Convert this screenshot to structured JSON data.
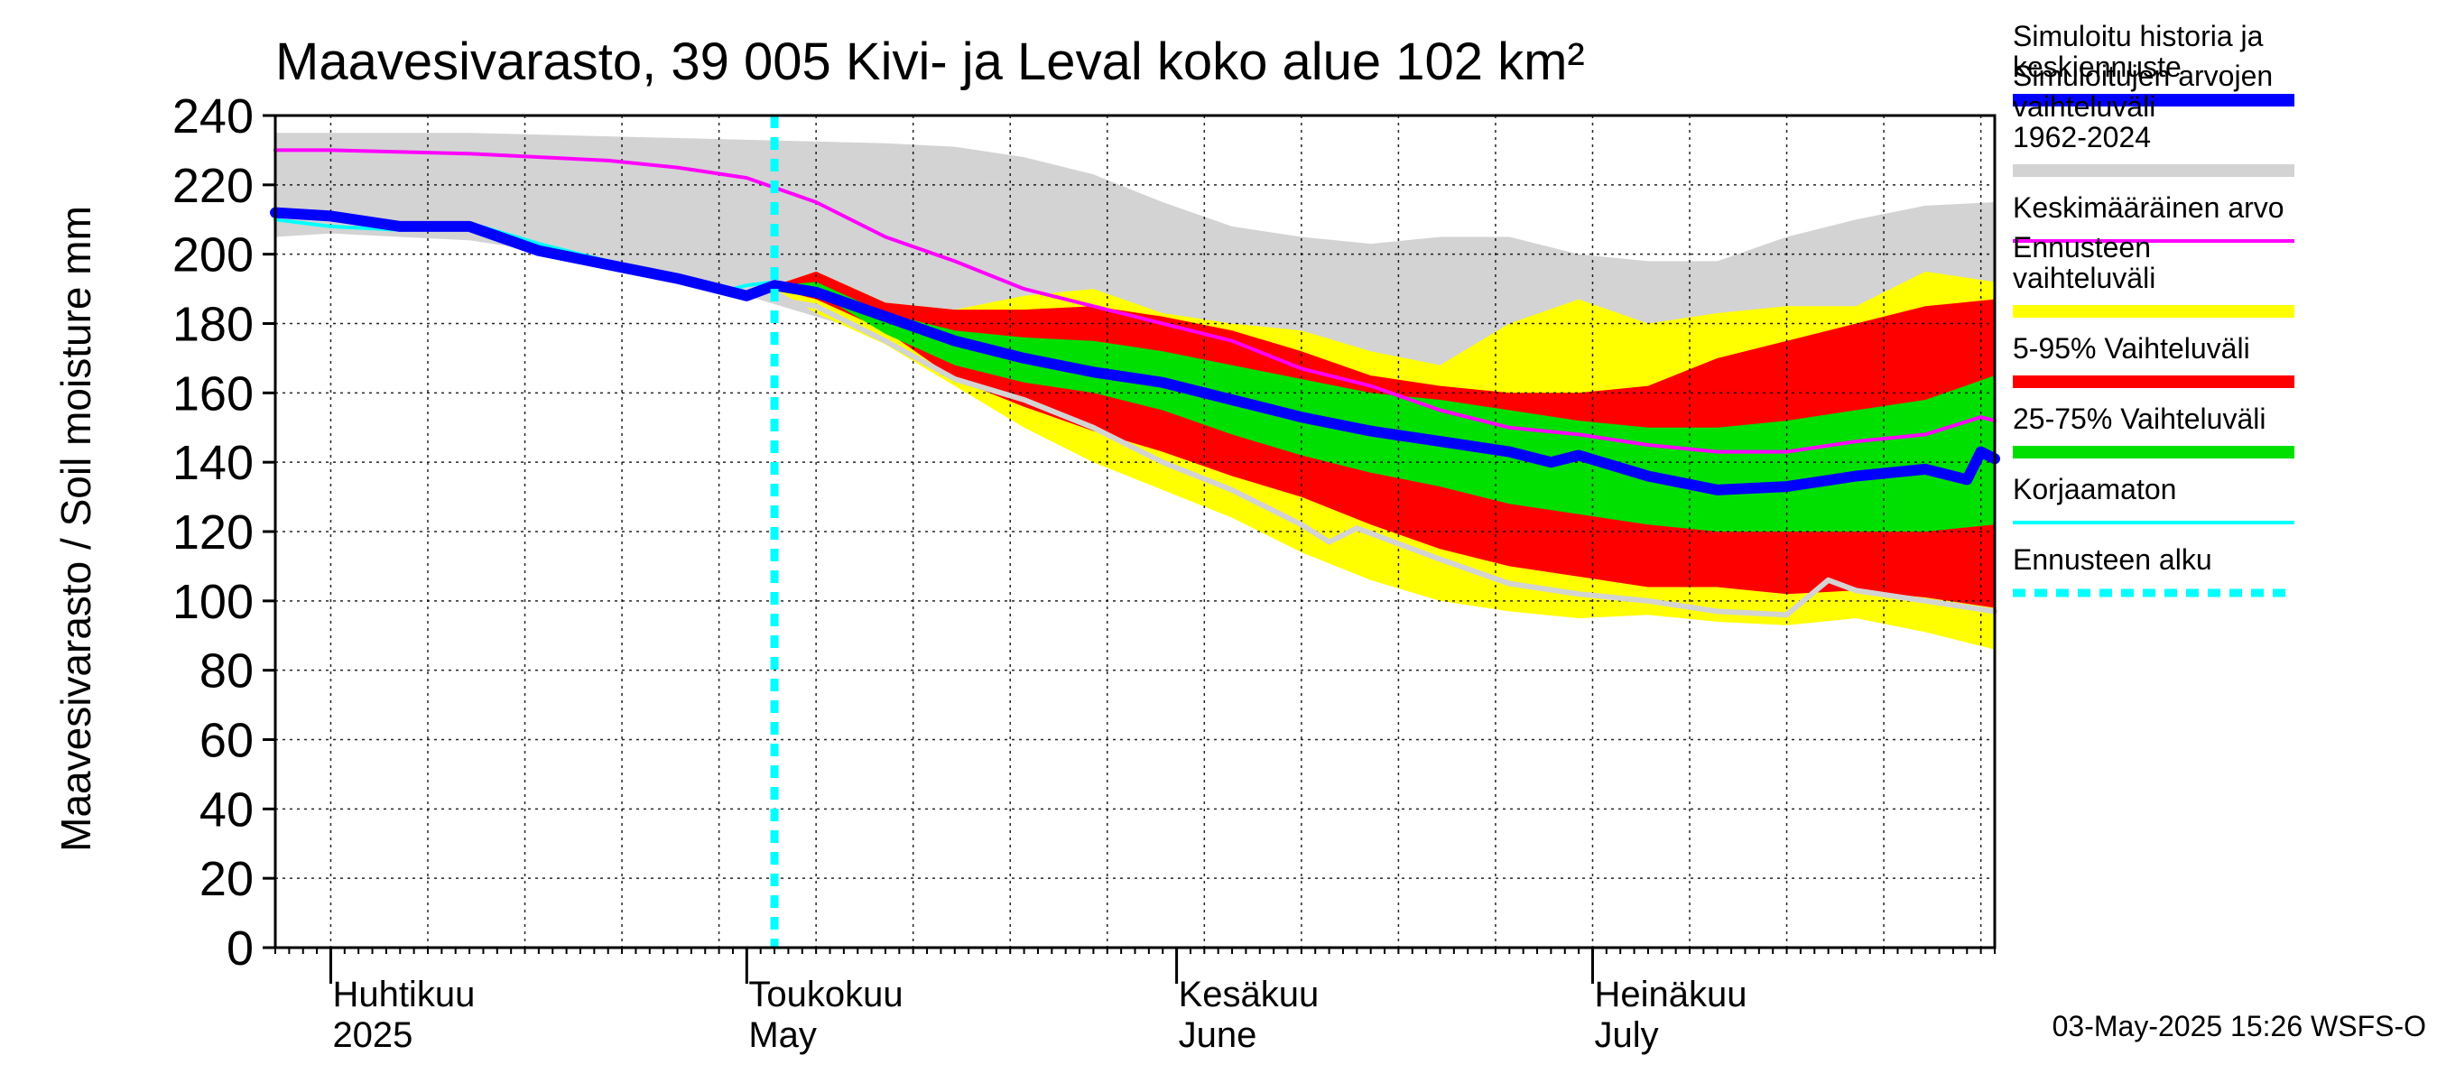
{
  "chart_data": {
    "type": "area",
    "title": "Maavesivarasto, 39 005 Kivi- ja Leval koko alue 102 km²",
    "ylabel": "Maavesivarasto / Soil moisture   mm",
    "xlabel": "",
    "ylim": [
      0,
      240
    ],
    "yticks": [
      0,
      20,
      40,
      60,
      80,
      100,
      120,
      140,
      160,
      180,
      200,
      220,
      240
    ],
    "x_domain": [
      -4,
      120
    ],
    "x_unit": "days since 2025-04-01",
    "month_starts": [
      0,
      30,
      61,
      91
    ],
    "month_labels": [
      {
        "day": 0,
        "fi": "Huhtikuu",
        "en": "2025"
      },
      {
        "day": 30,
        "fi": "Toukokuu",
        "en": "May"
      },
      {
        "day": 61,
        "fi": "Kesäkuu",
        "en": "June"
      },
      {
        "day": 91,
        "fi": "Heinäkuu",
        "en": "July"
      }
    ],
    "forecast_start_day": 32,
    "bands": [
      {
        "name": "Simuloitujen arvojen vaihteluväli 1962-2024",
        "color": "#d3d3d3",
        "x": [
          -4,
          0,
          10,
          20,
          30,
          40,
          45,
          50,
          55,
          60,
          65,
          70,
          75,
          80,
          85,
          90,
          95,
          100,
          105,
          110,
          115,
          120
        ],
        "upper": [
          235,
          235,
          235,
          234,
          233,
          232,
          231,
          228,
          223,
          215,
          208,
          205,
          203,
          205,
          205,
          200,
          198,
          198,
          205,
          210,
          214,
          215
        ],
        "lower": [
          205,
          206,
          204,
          198,
          188,
          176,
          168,
          157,
          145,
          135,
          125,
          118,
          114,
          112,
          110,
          108,
          104,
          103,
          100,
          98,
          96,
          95
        ]
      },
      {
        "name": "Ennusteen vaihteluväli",
        "color": "#ffff00",
        "x": [
          32,
          35,
          40,
          45,
          50,
          55,
          60,
          65,
          70,
          75,
          80,
          85,
          90,
          95,
          100,
          105,
          110,
          115,
          120
        ],
        "upper": [
          191,
          195,
          186,
          184,
          188,
          190,
          183,
          180,
          178,
          172,
          168,
          180,
          187,
          180,
          183,
          185,
          185,
          195,
          192
        ],
        "lower": [
          190,
          183,
          174,
          162,
          150,
          140,
          132,
          124,
          114,
          106,
          100,
          97,
          95,
          96,
          94,
          93,
          95,
          91,
          86
        ]
      },
      {
        "name": "5-95% Vaihteluväli",
        "color": "#ff0000",
        "x": [
          32,
          35,
          40,
          45,
          50,
          55,
          60,
          65,
          70,
          75,
          80,
          85,
          90,
          95,
          100,
          105,
          110,
          115,
          120
        ],
        "upper": [
          191,
          195,
          186,
          184,
          184,
          185,
          182,
          178,
          172,
          165,
          162,
          160,
          160,
          162,
          170,
          175,
          180,
          185,
          187
        ],
        "lower": [
          190,
          187,
          178,
          164,
          156,
          149,
          143,
          136,
          130,
          122,
          115,
          110,
          107,
          104,
          104,
          102,
          103,
          101,
          98
        ]
      },
      {
        "name": "25-75% Vaihteluväli",
        "color": "#00e000",
        "x": [
          32,
          35,
          40,
          45,
          50,
          55,
          60,
          65,
          70,
          75,
          80,
          85,
          90,
          95,
          100,
          105,
          110,
          115,
          120
        ],
        "upper": [
          191,
          192,
          183,
          178,
          176,
          175,
          172,
          168,
          164,
          160,
          158,
          155,
          152,
          150,
          150,
          152,
          155,
          158,
          165
        ],
        "lower": [
          190,
          189,
          177,
          168,
          163,
          160,
          155,
          148,
          142,
          137,
          133,
          128,
          125,
          122,
          120,
          120,
          120,
          120,
          122
        ]
      }
    ],
    "series": [
      {
        "name": "Keskimääräinen arvo",
        "color": "#ff00ff",
        "width": 4,
        "x": [
          -4,
          0,
          10,
          20,
          25,
          30,
          35,
          40,
          45,
          50,
          55,
          60,
          65,
          70,
          75,
          80,
          85,
          90,
          95,
          100,
          105,
          110,
          115,
          119,
          120
        ],
        "y": [
          230,
          230,
          229,
          227,
          225,
          222,
          215,
          205,
          198,
          190,
          185,
          180,
          175,
          167,
          162,
          155,
          150,
          148,
          145,
          143,
          143,
          146,
          148,
          153,
          152
        ]
      },
      {
        "name": "Korjaamaton",
        "color": "#00ffff",
        "width": 4,
        "x": [
          -4,
          0,
          5,
          10,
          15,
          20,
          25,
          28,
          30,
          32
        ],
        "y": [
          210,
          208,
          207,
          209,
          203,
          198,
          193,
          189,
          191,
          192
        ]
      },
      {
        "name": "Ennuste (harmaa)",
        "color": "#d3d3d3",
        "width": 6,
        "x": [
          32,
          35,
          40,
          45,
          50,
          55,
          60,
          65,
          70,
          72,
          74,
          76,
          80,
          85,
          90,
          95,
          100,
          105,
          108,
          110,
          115,
          120
        ],
        "y": [
          187,
          185,
          175,
          164,
          158,
          150,
          140,
          132,
          122,
          117,
          121,
          118,
          112,
          105,
          102,
          100,
          97,
          96,
          106,
          103,
          100,
          97
        ]
      },
      {
        "name": "Simuloitu historia ja keskiennuste",
        "color": "#0000ff",
        "width": 12,
        "x": [
          -4,
          0,
          5,
          10,
          15,
          20,
          25,
          28,
          30,
          32,
          35,
          40,
          45,
          50,
          55,
          60,
          65,
          70,
          75,
          80,
          85,
          88,
          90,
          95,
          100,
          105,
          110,
          115,
          118,
          119,
          120
        ],
        "y": [
          212,
          211,
          208,
          208,
          201,
          197,
          193,
          190,
          188,
          191,
          189,
          182,
          175,
          170,
          166,
          163,
          158,
          153,
          149,
          146,
          143,
          140,
          142,
          136,
          132,
          133,
          136,
          138,
          135,
          143,
          141
        ]
      }
    ],
    "legend": [
      {
        "label": "Simuloitu historia ja keskiennuste",
        "color": "#0000ff",
        "style": "thick"
      },
      {
        "label": "Simuloitujen arvojen vaihteluväli 1962-2024",
        "color": "#d3d3d3",
        "style": "thick"
      },
      {
        "label": "Keskimääräinen arvo",
        "color": "#ff00ff",
        "style": "thin"
      },
      {
        "label": "Ennusteen vaihteluväli",
        "color": "#ffff00",
        "style": "thick"
      },
      {
        "label": "5-95% Vaihteluväli",
        "color": "#ff0000",
        "style": "thick"
      },
      {
        "label": "25-75% Vaihteluväli",
        "color": "#00e000",
        "style": "thick"
      },
      {
        "label": "Korjaamaton",
        "color": "#00ffff",
        "style": "thin"
      },
      {
        "label": "Ennusteen alku",
        "color": "#00ffff",
        "style": "dashed"
      }
    ],
    "legend_position": "right",
    "footer": "03-May-2025 15:26 WSFS-O"
  }
}
